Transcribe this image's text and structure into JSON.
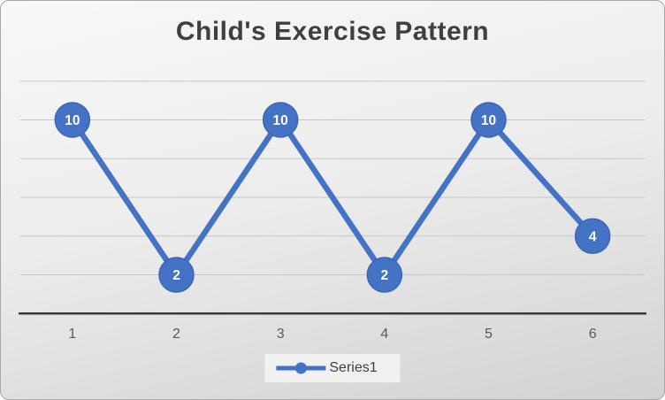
{
  "chart_data": {
    "type": "line",
    "title": "Child's Exercise Pattern",
    "x": [
      1,
      2,
      3,
      4,
      5,
      6
    ],
    "series": [
      {
        "name": "Series1",
        "values": [
          10,
          2,
          10,
          2,
          10,
          4
        ]
      }
    ],
    "xlabel": "",
    "ylabel": "",
    "ylim": [
      0,
      12
    ],
    "gridline_step": 2,
    "grid": true,
    "y_axis_labels_visible": false,
    "data_labels": "inside-marker",
    "legend_position": "bottom-center"
  },
  "colors": {
    "series": "#4472C4",
    "marker_stroke": "#3c66b4",
    "data_label_text": "#ffffff",
    "grid": "#c7c7c7",
    "axis": "#3a3a3a",
    "title_text": "#3f3f3f",
    "tick_text": "#595959",
    "legend_text": "#404040",
    "legend_bg": "#f1f1f1"
  }
}
